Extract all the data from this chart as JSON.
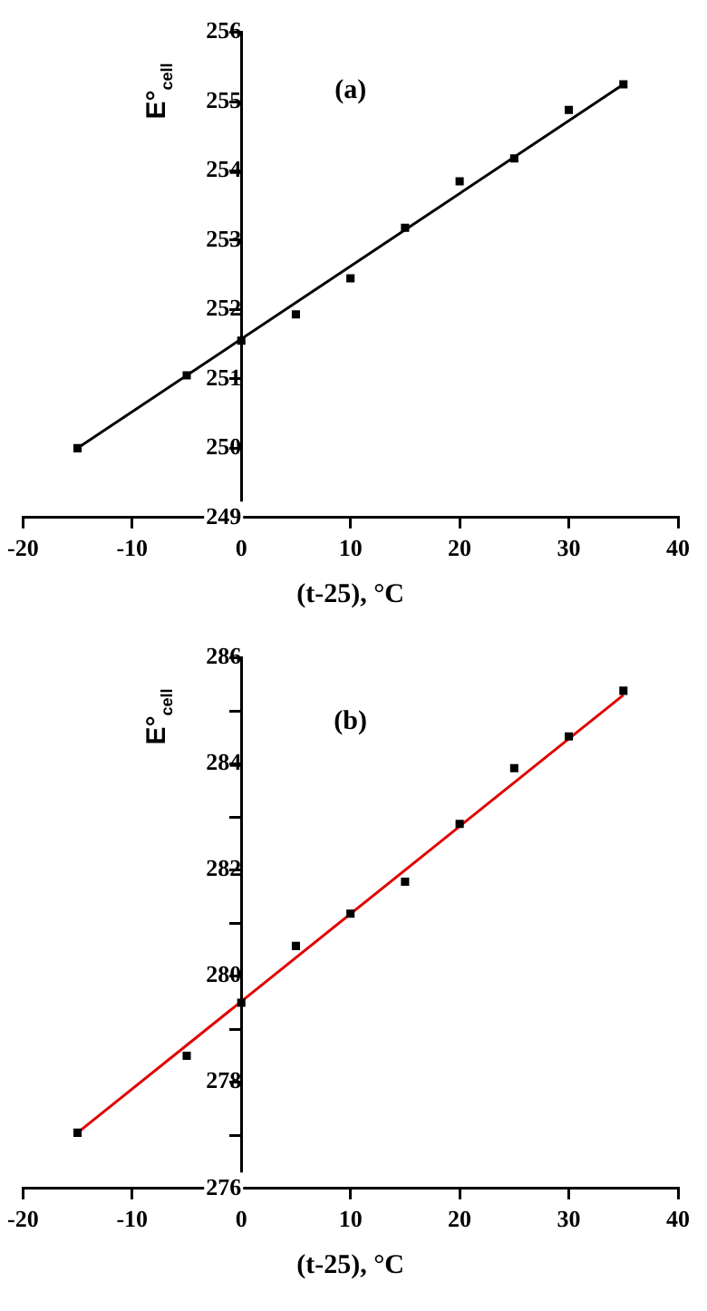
{
  "chart_data": [
    {
      "type": "scatter",
      "xlabel": "(t-25), °C",
      "ylabel": "E°$_{cell}$",
      "annotations": [
        "(a)"
      ],
      "xlim": [
        -20,
        40
      ],
      "xticks": [
        -20,
        -10,
        0,
        10,
        20,
        30,
        40
      ],
      "ylim": [
        249,
        256
      ],
      "yticks": [
        249,
        250,
        251,
        252,
        253,
        254,
        255,
        256
      ],
      "grid": false,
      "legend": false,
      "series": [
        {
          "type": "scatter",
          "marker": "square",
          "color": "#000000",
          "x": [
            -15,
            -5,
            0,
            5,
            10,
            15,
            20,
            25,
            30,
            35
          ],
          "values": [
            250.0,
            251.05,
            251.55,
            251.93,
            252.45,
            253.18,
            253.85,
            254.18,
            254.88,
            255.25
          ]
        },
        {
          "type": "line",
          "marker": "none",
          "color": "#000000",
          "x": [
            -15,
            35
          ],
          "values": [
            250.0,
            255.25
          ]
        }
      ]
    },
    {
      "type": "scatter",
      "xlabel": "(t-25), °C",
      "ylabel": "E°$_{cell}$",
      "annotations": [
        "(b)"
      ],
      "xlim": [
        -20,
        40
      ],
      "xticks": [
        -20,
        -10,
        0,
        10,
        20,
        30,
        40
      ],
      "ylim": [
        276,
        286
      ],
      "yticks": [
        276,
        {
          "value": 277,
          "label": null
        },
        278,
        {
          "value": 279,
          "label": null
        },
        280,
        {
          "value": 281,
          "label": null
        },
        282,
        {
          "value": 283,
          "label": null
        },
        284,
        {
          "value": 285,
          "label": null
        },
        286
      ],
      "grid": false,
      "legend": false,
      "series": [
        {
          "type": "scatter",
          "marker": "square",
          "color": "#000000",
          "x": [
            -15,
            -5,
            0,
            5,
            10,
            15,
            20,
            25,
            30,
            35
          ],
          "values": [
            277.05,
            278.5,
            279.5,
            280.57,
            281.18,
            281.78,
            282.87,
            283.92,
            284.52,
            285.38
          ]
        },
        {
          "type": "line",
          "marker": "none",
          "color": "#e00000",
          "x": [
            -15,
            35
          ],
          "values": [
            277.05,
            285.3
          ]
        }
      ]
    }
  ]
}
